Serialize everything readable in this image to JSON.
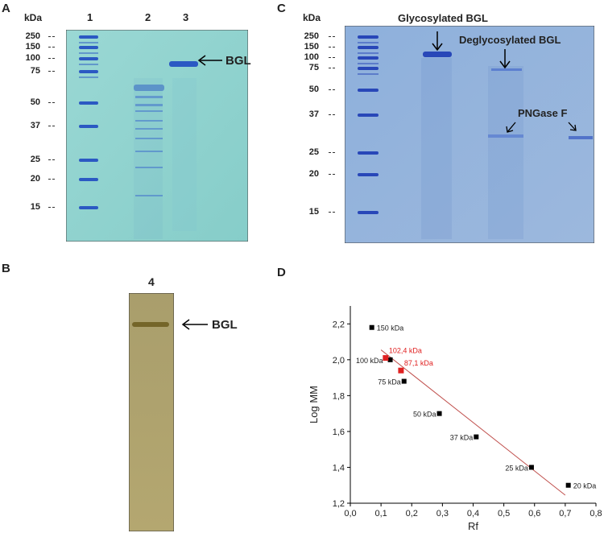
{
  "panel_a": {
    "letter": "A",
    "kda_label": "kDa",
    "lanes": [
      "1",
      "2",
      "3"
    ],
    "markers": [
      "250",
      "150",
      "100",
      "75",
      "50",
      "37",
      "25",
      "20",
      "15"
    ],
    "band_label": "BGL",
    "colors": {
      "gel": "#8fd3cf",
      "band": "#2b59c3"
    }
  },
  "panel_b": {
    "letter": "B",
    "lane": "4",
    "band_label": "BGL",
    "colors": {
      "gel": "#a79a62",
      "band": "#6b5a1d"
    }
  },
  "panel_c": {
    "letter": "C",
    "kda_label": "kDa",
    "markers": [
      "250",
      "150",
      "100",
      "75",
      "50",
      "37",
      "25",
      "20",
      "15"
    ],
    "annotations": {
      "glyco": "Glycosylated BGL",
      "deglyco": "Deglycosylated BGL",
      "pngase": "PNGase F"
    },
    "colors": {
      "gel": "#7da3d6",
      "band": "#2847b8"
    }
  },
  "panel_d": {
    "letter": "D",
    "chart_data": {
      "type": "scatter",
      "xlabel": "Rf",
      "ylabel": "Log MM",
      "xlim": [
        0.0,
        0.8
      ],
      "ylim": [
        1.2,
        2.3
      ],
      "xticks": [
        "0,0",
        "0,1",
        "0,2",
        "0,3",
        "0,4",
        "0,5",
        "0,6",
        "0,7",
        "0,8"
      ],
      "yticks": [
        "1,2",
        "1,4",
        "1,6",
        "1,8",
        "2,0",
        "2,2"
      ],
      "series": [
        {
          "color": "#000000",
          "points": [
            {
              "x": 0.07,
              "y": 2.18,
              "label": "150 kDa"
            },
            {
              "x": 0.13,
              "y": 2.0,
              "label": "100 kDa"
            },
            {
              "x": 0.175,
              "y": 1.88,
              "label": "75 kDa"
            },
            {
              "x": 0.29,
              "y": 1.7,
              "label": "50 kDa"
            },
            {
              "x": 0.41,
              "y": 1.57,
              "label": "37 kDa"
            },
            {
              "x": 0.59,
              "y": 1.4,
              "label": "25 kDa"
            },
            {
              "x": 0.71,
              "y": 1.3,
              "label": "20 kDa"
            }
          ]
        },
        {
          "color": "#e02020",
          "points": [
            {
              "x": 0.115,
              "y": 2.01,
              "label": "102,4 kDa"
            },
            {
              "x": 0.165,
              "y": 1.94,
              "label": "87,1 kDa"
            }
          ]
        }
      ],
      "trendline": {
        "x": [
          0.1,
          0.7
        ],
        "y": [
          2.055,
          1.245
        ],
        "color": "#c0504d"
      },
      "grid": false
    }
  }
}
